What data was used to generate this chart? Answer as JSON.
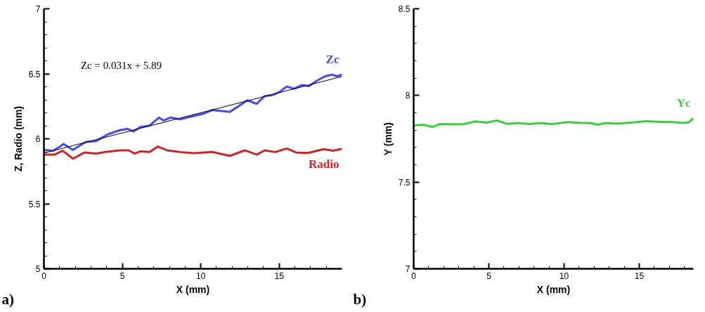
{
  "chart_data": [
    {
      "type": "line",
      "xlabel": "X (mm)",
      "ylabel": "Z, Radio (mm)",
      "xlim": [
        0,
        19
      ],
      "ylim": [
        5,
        7
      ],
      "xticks": [
        0,
        {
          "value": 1,
          "label": null
        },
        {
          "value": 2,
          "label": null
        },
        {
          "value": 3,
          "label": null
        },
        {
          "value": 4,
          "label": null
        },
        5,
        {
          "value": 6,
          "label": null
        },
        {
          "value": 7,
          "label": null
        },
        {
          "value": 8,
          "label": null
        },
        {
          "value": 9,
          "label": null
        },
        10,
        {
          "value": 11,
          "label": null
        },
        {
          "value": 12,
          "label": null
        },
        {
          "value": 13,
          "label": null
        },
        {
          "value": 14,
          "label": null
        },
        15,
        {
          "value": 16,
          "label": null
        },
        {
          "value": 17,
          "label": null
        },
        {
          "value": 18,
          "label": null
        }
      ],
      "yticks": [
        5,
        {
          "value": 5.1,
          "label": null
        },
        {
          "value": 5.2,
          "label": null
        },
        {
          "value": 5.3,
          "label": null
        },
        {
          "value": 5.4,
          "label": null
        },
        5.5,
        {
          "value": 5.6,
          "label": null
        },
        {
          "value": 5.7,
          "label": null
        },
        {
          "value": 5.8,
          "label": null
        },
        {
          "value": 5.9,
          "label": null
        },
        6,
        {
          "value": 6.1,
          "label": null
        },
        {
          "value": 6.2,
          "label": null
        },
        {
          "value": 6.3,
          "label": null
        },
        {
          "value": 6.4,
          "label": null
        },
        6.5,
        {
          "value": 6.6,
          "label": null
        },
        {
          "value": 6.7,
          "label": null
        },
        {
          "value": 6.8,
          "label": null
        },
        {
          "value": 6.9,
          "label": null
        },
        7
      ],
      "grid": false,
      "line_style": "solid",
      "annotations": [
        "a)",
        "Zc = 0.031x + 5.89"
      ],
      "series": [
        {
          "name": "Zc",
          "color": "#4a4ae6",
          "x": [
            0,
            0.59,
            1.26,
            1.85,
            2.67,
            3.33,
            4.07,
            4.81,
            5.33,
            5.7,
            6.15,
            6.74,
            7.33,
            7.63,
            8.07,
            8.67,
            9.41,
            10.15,
            10.74,
            11.33,
            11.85,
            12.37,
            12.96,
            13.56,
            14.07,
            14.59,
            15.04,
            15.48,
            15.93,
            16.44,
            16.89,
            17.41,
            17.93,
            18.37,
            18.67,
            19
          ],
          "values": [
            5.915,
            5.908,
            5.96,
            5.915,
            5.976,
            5.983,
            6.034,
            6.065,
            6.077,
            6.056,
            6.09,
            6.102,
            6.163,
            6.141,
            6.163,
            6.15,
            6.172,
            6.192,
            6.221,
            6.214,
            6.207,
            6.248,
            6.296,
            6.269,
            6.328,
            6.337,
            6.362,
            6.402,
            6.385,
            6.413,
            6.405,
            6.447,
            6.481,
            6.493,
            6.481,
            6.493
          ]
        },
        {
          "name": "Radio",
          "color": "#c42828",
          "x": [
            0,
            0.67,
            1.19,
            1.85,
            2.59,
            3.33,
            3.93,
            4.81,
            5.41,
            5.78,
            6.15,
            6.74,
            7.26,
            7.85,
            8.67,
            9.56,
            10.74,
            11.85,
            12.81,
            13.56,
            14.07,
            14.74,
            15.48,
            16.07,
            16.81,
            17.85,
            18.44,
            19
          ],
          "values": [
            5.878,
            5.878,
            5.908,
            5.847,
            5.895,
            5.886,
            5.899,
            5.911,
            5.911,
            5.886,
            5.903,
            5.899,
            5.94,
            5.911,
            5.898,
            5.889,
            5.899,
            5.869,
            5.911,
            5.878,
            5.911,
            5.898,
            5.925,
            5.895,
            5.891,
            5.92,
            5.908,
            5.923
          ]
        },
        {
          "color": "#000000",
          "x": [
            0,
            19
          ],
          "values": [
            5.89,
            6.479
          ]
        }
      ]
    },
    {
      "type": "line",
      "xlabel": "X (mm)",
      "ylabel": "Y (mm)",
      "xlim": [
        0,
        18.6
      ],
      "ylim": [
        7,
        8.5
      ],
      "xticks": [
        0,
        {
          "value": 1,
          "label": null
        },
        {
          "value": 2,
          "label": null
        },
        {
          "value": 3,
          "label": null
        },
        {
          "value": 4,
          "label": null
        },
        5,
        {
          "value": 6,
          "label": null
        },
        {
          "value": 7,
          "label": null
        },
        {
          "value": 8,
          "label": null
        },
        {
          "value": 9,
          "label": null
        },
        10,
        {
          "value": 11,
          "label": null
        },
        {
          "value": 12,
          "label": null
        },
        {
          "value": 13,
          "label": null
        },
        {
          "value": 14,
          "label": null
        },
        15,
        {
          "value": 16,
          "label": null
        },
        {
          "value": 17,
          "label": null
        },
        {
          "value": 18,
          "label": null
        }
      ],
      "yticks": [
        7,
        {
          "value": 7.1,
          "label": null
        },
        {
          "value": 7.2,
          "label": null
        },
        {
          "value": 7.3,
          "label": null
        },
        {
          "value": 7.4,
          "label": null
        },
        7.5,
        {
          "value": 7.6,
          "label": null
        },
        {
          "value": 7.7,
          "label": null
        },
        {
          "value": 7.8,
          "label": null
        },
        {
          "value": 7.9,
          "label": null
        },
        8,
        {
          "value": 8.1,
          "label": null
        },
        {
          "value": 8.2,
          "label": null
        },
        {
          "value": 8.3,
          "label": null
        },
        {
          "value": 8.4,
          "label": null
        },
        8.5
      ],
      "grid": false,
      "line_style": "solid",
      "annotations": [
        "b)"
      ],
      "series": [
        {
          "name": "Yc",
          "color": "#3ccc3c",
          "x": [
            0,
            0.67,
            1.27,
            1.72,
            2.76,
            3.36,
            4.11,
            4.86,
            5.53,
            6.2,
            6.95,
            7.7,
            8.44,
            9.19,
            10.24,
            11.14,
            11.73,
            12.26,
            12.78,
            13.53,
            14.42,
            15.47,
            16.2,
            17.1,
            17.92,
            18.3,
            18.6
          ],
          "values": [
            7.827,
            7.831,
            7.818,
            7.835,
            7.833,
            7.835,
            7.85,
            7.843,
            7.856,
            7.836,
            7.841,
            7.835,
            7.841,
            7.835,
            7.846,
            7.841,
            7.841,
            7.831,
            7.841,
            7.837,
            7.843,
            7.851,
            7.848,
            7.847,
            7.841,
            7.845,
            7.87
          ]
        }
      ]
    }
  ]
}
